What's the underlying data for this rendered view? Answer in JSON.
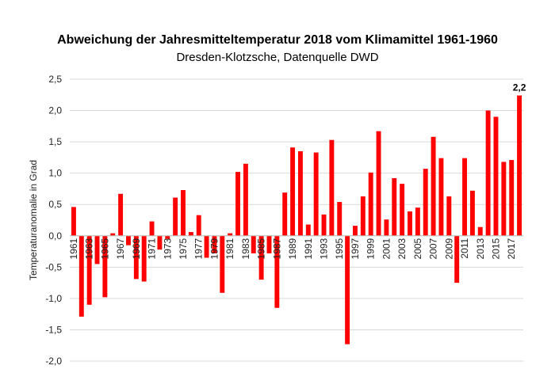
{
  "chart_data": {
    "type": "bar",
    "title": "Abweichung der Jahresmitteltemperatur 2018 vom Klimamittel 1961-1960",
    "subtitle": "Dresden-Klotzsche, Datenquelle DWD",
    "ylabel": "Temperaturanomalie in Grad",
    "xlabel": "",
    "ylim": [
      -2.0,
      2.5
    ],
    "yticks": [
      "2,5",
      "2,0",
      "1,5",
      "1,0",
      "0,5",
      "0,0",
      "-0,5",
      "-1,0",
      "-1,5",
      "-2,0"
    ],
    "ytick_values": [
      2.5,
      2.0,
      1.5,
      1.0,
      0.5,
      0.0,
      -0.5,
      -1.0,
      -1.5,
      -2.0
    ],
    "grid": true,
    "legend": "none",
    "bar_color": "#ff0000",
    "grid_color": "#d9d9d9",
    "categories": [
      1961,
      1962,
      1963,
      1964,
      1965,
      1966,
      1967,
      1968,
      1969,
      1970,
      1971,
      1972,
      1973,
      1974,
      1975,
      1976,
      1977,
      1978,
      1979,
      1980,
      1981,
      1982,
      1983,
      1984,
      1985,
      1986,
      1987,
      1988,
      1989,
      1990,
      1991,
      1992,
      1993,
      1994,
      1995,
      1996,
      1997,
      1998,
      1999,
      2000,
      2001,
      2002,
      2003,
      2004,
      2005,
      2006,
      2007,
      2008,
      2009,
      2010,
      2011,
      2012,
      2013,
      2014,
      2015,
      2016,
      2017,
      2018
    ],
    "tick_labels": [
      "1961",
      "1963",
      "1965",
      "1967",
      "1969",
      "1971",
      "1973",
      "1975",
      "1977",
      "1979",
      "1981",
      "1983",
      "1985",
      "1987",
      "1989",
      "1991",
      "1993",
      "1995",
      "1997",
      "1999",
      "2001",
      "2003",
      "2005",
      "2007",
      "2009",
      "2011",
      "2013",
      "2015",
      "2017"
    ],
    "values": [
      0.46,
      -1.29,
      -1.1,
      -0.45,
      -0.98,
      0.04,
      0.67,
      -0.15,
      -0.69,
      -0.73,
      0.23,
      -0.22,
      -0.05,
      0.61,
      0.73,
      0.06,
      0.33,
      -0.35,
      -0.28,
      -0.91,
      0.04,
      1.02,
      1.15,
      -0.28,
      -0.7,
      -0.28,
      -1.15,
      0.69,
      1.41,
      1.35,
      0.18,
      1.33,
      0.34,
      1.53,
      0.54,
      -1.73,
      0.16,
      0.63,
      1.01,
      1.67,
      0.26,
      0.92,
      0.83,
      0.39,
      0.45,
      1.07,
      1.58,
      1.24,
      0.63,
      -0.75,
      1.24,
      0.72,
      0.14,
      2.0,
      1.9,
      1.18,
      1.21,
      2.24
    ],
    "annotation": "2,2"
  }
}
